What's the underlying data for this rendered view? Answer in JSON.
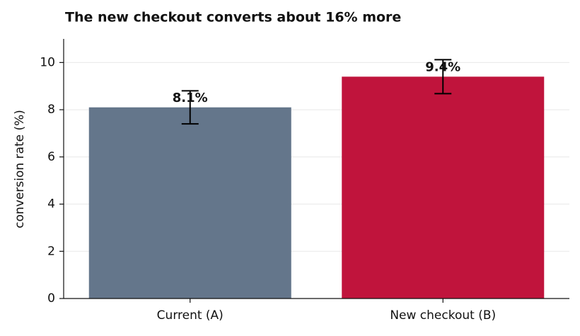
{
  "chart_data": {
    "type": "bar",
    "title": "The new checkout converts about 16% more",
    "y_label": "conversion rate (%)",
    "categories": [
      "Current (A)",
      "New checkout (B)"
    ],
    "values": [
      8.1,
      9.4
    ],
    "value_labels": [
      "8.1%",
      "9.4%"
    ],
    "errors": [
      0.7,
      0.72
    ],
    "colors": [
      "#64768b",
      "#c0143c"
    ],
    "ylim": [
      0,
      11
    ],
    "yticks": [
      0,
      2,
      4,
      6,
      8,
      10
    ],
    "grid": true
  }
}
